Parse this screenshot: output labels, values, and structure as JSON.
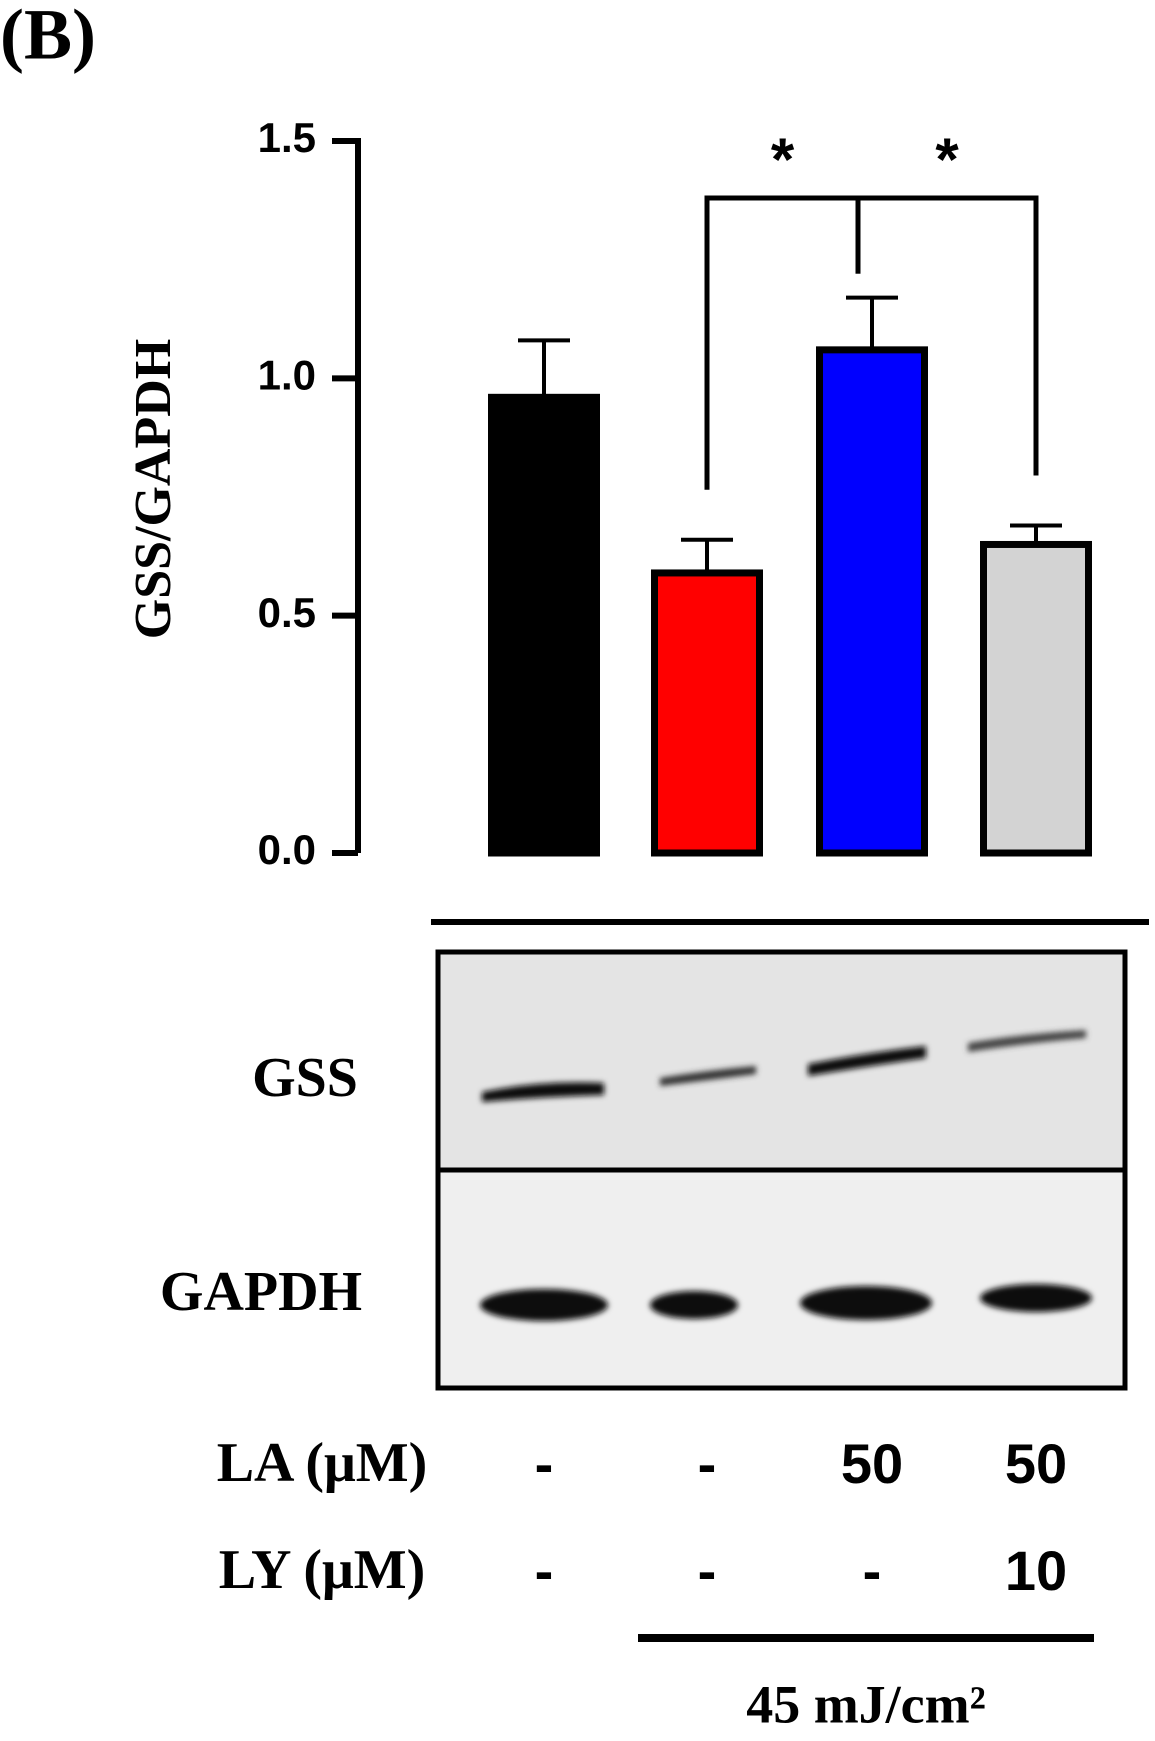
{
  "chart_data": {
    "type": "bar",
    "panel_label": "(B)",
    "ylabel": "GSS/GAPDH",
    "categories": [
      null,
      null,
      null,
      null
    ],
    "values": [
      0.96,
      0.59,
      1.06,
      0.65
    ],
    "errors": [
      0.12,
      0.07,
      0.11,
      0.04
    ],
    "colors": [
      "#000000",
      "#ff0000",
      "#0000ff",
      "#d3d3d3"
    ],
    "ylim": [
      0,
      1.5
    ],
    "yticks": [
      {
        "value": 0,
        "label": "0.0"
      },
      {
        "value": 0.5,
        "label": "0.5"
      },
      {
        "value": 1,
        "label": "1.0"
      },
      {
        "value": 1.5,
        "label": "1.5"
      }
    ],
    "annotations": [
      "*",
      "*"
    ]
  },
  "blot": {
    "rows": [
      "GSS",
      "GAPDH"
    ]
  },
  "conditions": {
    "rows": [
      {
        "label": "LA (μM)",
        "values": [
          "-",
          "-",
          "50",
          "50"
        ]
      },
      {
        "label": "LY (μM)",
        "values": [
          "-",
          "-",
          "-",
          "10"
        ]
      }
    ],
    "treatment": "45 mJ/cm²"
  }
}
